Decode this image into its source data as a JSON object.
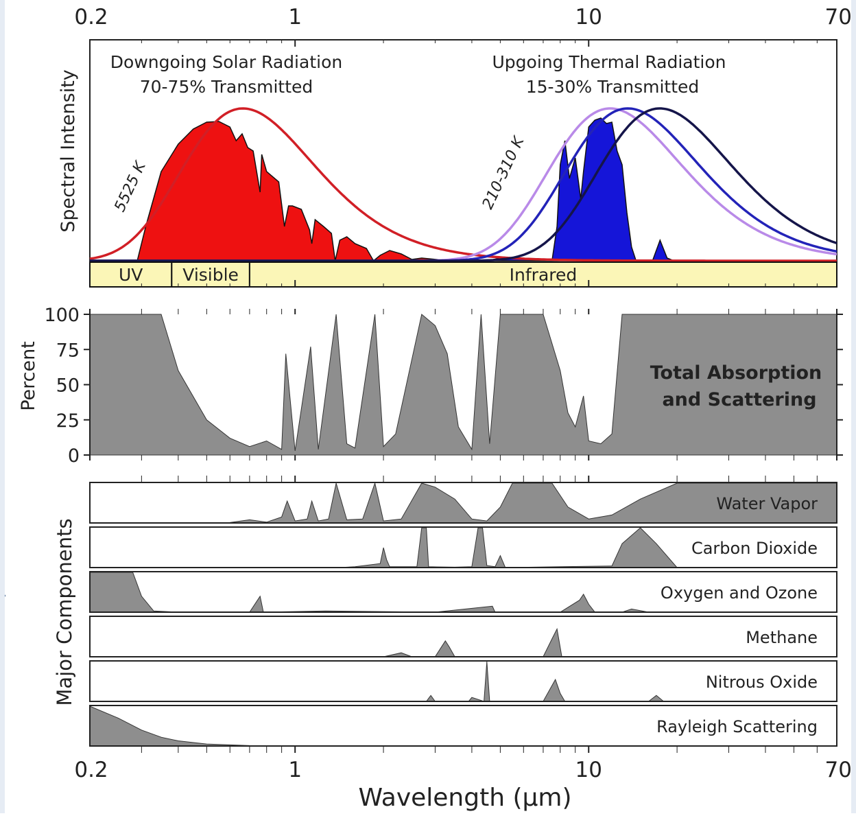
{
  "chart_data": {
    "type": "area",
    "x_scale": "log",
    "xlim": [
      0.2,
      70
    ],
    "xlabel": "Wavelength (µm)",
    "x_ticks": [
      "0.2",
      "1",
      "10",
      "70"
    ],
    "x_tick_values": [
      0.2,
      1,
      10,
      70
    ],
    "spectrum": {
      "ylabel": "Spectral Intensity",
      "solar_title": "Downgoing Solar Radiation",
      "solar_subtitle": "70-75% Transmitted",
      "thermal_title": "Upgoing Thermal Radiation",
      "thermal_subtitle": "15-30% Transmitted",
      "solar_curve_label": "5525 K",
      "thermal_curve_label": "210-310 K",
      "solar_curve_color": "#d11f26",
      "solar_fill_color": "#ee1111",
      "thermal_fill_color": "#1515d8",
      "thermal_curve_colors": [
        "#b98ae8",
        "#2323b8",
        "#15154a"
      ],
      "bands": [
        {
          "label": "UV",
          "range": [
            0.2,
            0.38
          ]
        },
        {
          "label": "Visible",
          "range": [
            0.38,
            0.7
          ]
        },
        {
          "label": "Infrared",
          "range": [
            0.7,
            70
          ]
        }
      ],
      "band_color": "#fbf6b7"
    },
    "absorption": {
      "ylabel": "Percent",
      "ylim": [
        0,
        100
      ],
      "y_ticks": [
        "100",
        "75",
        "50",
        "25",
        "0"
      ],
      "y_tick_values": [
        100,
        75,
        50,
        25,
        0
      ],
      "label_line1": "Total Absorption",
      "label_line2": "and Scattering",
      "fill_color": "#8e8e8e",
      "x": [
        0.2,
        0.35,
        0.4,
        0.5,
        0.6,
        0.7,
        0.8,
        0.9,
        0.93,
        1.0,
        1.13,
        1.2,
        1.38,
        1.5,
        1.6,
        1.87,
        2.0,
        2.2,
        2.7,
        3.0,
        3.3,
        3.6,
        4.0,
        4.3,
        4.6,
        5.0,
        6.0,
        7.0,
        8.0,
        8.5,
        9.0,
        9.6,
        10.0,
        11.0,
        12.0,
        13.0,
        15.0,
        20.0,
        70.0
      ],
      "values": [
        100,
        100,
        60,
        25,
        12,
        6,
        10,
        4,
        72,
        3,
        77,
        4,
        100,
        8,
        5,
        100,
        6,
        15,
        100,
        92,
        72,
        20,
        4,
        100,
        8,
        100,
        100,
        100,
        60,
        30,
        20,
        42,
        10,
        8,
        15,
        100,
        100,
        100,
        100
      ]
    },
    "components": {
      "ylabel": "Major Components",
      "fill_color": "#8e8e8e",
      "series": [
        {
          "name": "Water Vapor",
          "x": [
            0.2,
            0.6,
            0.7,
            0.8,
            0.9,
            0.94,
            1.0,
            1.1,
            1.14,
            1.2,
            1.3,
            1.38,
            1.5,
            1.7,
            1.87,
            2.0,
            2.3,
            2.7,
            3.0,
            3.5,
            4.0,
            4.5,
            5.0,
            5.5,
            7.5,
            8.5,
            10.0,
            12.0,
            15.0,
            20.0,
            70.0
          ],
          "values": [
            0,
            1,
            8,
            2,
            15,
            55,
            5,
            10,
            55,
            5,
            10,
            100,
            8,
            10,
            100,
            5,
            10,
            100,
            90,
            60,
            10,
            5,
            40,
            100,
            100,
            40,
            10,
            20,
            60,
            100,
            100
          ]
        },
        {
          "name": "Carbon Dioxide",
          "x": [
            0.2,
            1.4,
            1.6,
            1.95,
            2.0,
            2.05,
            2.1,
            2.6,
            2.7,
            2.8,
            2.85,
            3.5,
            4.0,
            4.2,
            4.35,
            4.5,
            4.8,
            5.0,
            5.2,
            8.0,
            12.0,
            13.0,
            15.0,
            17.0,
            20.0,
            70.0
          ],
          "values": [
            0,
            0,
            2,
            10,
            50,
            20,
            2,
            2,
            100,
            100,
            2,
            1,
            2,
            100,
            100,
            5,
            2,
            30,
            0,
            2,
            4,
            60,
            100,
            60,
            0,
            0
          ]
        },
        {
          "name": "Oxygen and Ozone",
          "x": [
            0.2,
            0.28,
            0.3,
            0.33,
            0.4,
            0.7,
            0.76,
            0.78,
            1.27,
            3.0,
            4.7,
            4.8,
            5.0,
            8.0,
            9.3,
            9.6,
            10.0,
            10.5,
            13.0,
            14.0,
            16.0,
            70.0
          ],
          "values": [
            100,
            100,
            40,
            3,
            0,
            0,
            40,
            0,
            3,
            0,
            15,
            0,
            0,
            0,
            30,
            45,
            20,
            0,
            0,
            8,
            0,
            0
          ]
        },
        {
          "name": "Methane",
          "x": [
            0.2,
            2.0,
            2.3,
            2.5,
            3.0,
            3.25,
            3.35,
            3.5,
            4.0,
            7.0,
            7.5,
            7.8,
            8.1,
            9.0,
            70.0
          ],
          "values": [
            0,
            0,
            10,
            0,
            0,
            40,
            25,
            0,
            0,
            0,
            45,
            70,
            0,
            0,
            0
          ]
        },
        {
          "name": "Nitrous Oxide",
          "x": [
            0.2,
            2.8,
            2.9,
            3.0,
            3.9,
            4.0,
            4.4,
            4.5,
            4.6,
            7.0,
            7.7,
            8.0,
            8.3,
            16.0,
            17.0,
            18.0,
            70.0
          ],
          "values": [
            0,
            0,
            15,
            0,
            0,
            10,
            0,
            100,
            0,
            0,
            55,
            20,
            0,
            0,
            15,
            0,
            0
          ]
        },
        {
          "name": "Rayleigh Scattering",
          "x": [
            0.2,
            0.25,
            0.3,
            0.35,
            0.4,
            0.5,
            0.7,
            1.0,
            70.0
          ],
          "values": [
            100,
            70,
            40,
            22,
            13,
            5,
            1,
            0,
            0
          ]
        }
      ]
    }
  }
}
